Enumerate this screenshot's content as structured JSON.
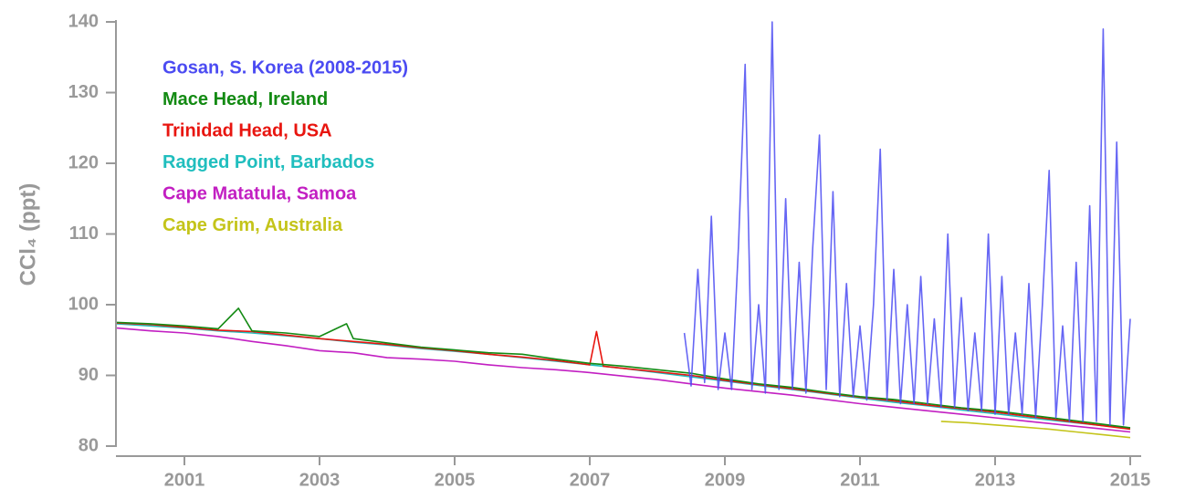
{
  "chart_data": {
    "type": "line",
    "y_label": "CCl₄ (ppt)",
    "xlim": [
      2000,
      2015
    ],
    "ylim": [
      80,
      140
    ],
    "xticks": [
      2001,
      2003,
      2005,
      2007,
      2009,
      2011,
      2013,
      2015
    ],
    "yticks": [
      80,
      90,
      100,
      110,
      120,
      130,
      140
    ],
    "series": [
      {
        "name": "Gosan, S. Korea (2008-2015)",
        "color": "#4b4bf2",
        "x": [
          2008.4,
          2008.5,
          2008.6,
          2008.7,
          2008.8,
          2008.9,
          2009.0,
          2009.1,
          2009.2,
          2009.3,
          2009.4,
          2009.5,
          2009.6,
          2009.7,
          2009.8,
          2009.9,
          2010.0,
          2010.1,
          2010.2,
          2010.3,
          2010.4,
          2010.5,
          2010.6,
          2010.7,
          2010.8,
          2010.9,
          2011.0,
          2011.1,
          2011.2,
          2011.3,
          2011.4,
          2011.5,
          2011.6,
          2011.7,
          2011.8,
          2011.9,
          2012.0,
          2012.1,
          2012.2,
          2012.3,
          2012.4,
          2012.5,
          2012.6,
          2012.7,
          2012.8,
          2012.9,
          2013.0,
          2013.1,
          2013.2,
          2013.3,
          2013.4,
          2013.5,
          2013.6,
          2013.7,
          2013.8,
          2013.9,
          2014.0,
          2014.1,
          2014.2,
          2014.3,
          2014.4,
          2014.5,
          2014.6,
          2014.7,
          2014.8,
          2014.9,
          2015.0
        ],
        "values": [
          96,
          88.5,
          105,
          89,
          112.5,
          88,
          96,
          88,
          108,
          134,
          88,
          100,
          87.5,
          140,
          88,
          115,
          88,
          106,
          87.5,
          108,
          124,
          88,
          116,
          87,
          103,
          87,
          97,
          86.5,
          100,
          122,
          86.5,
          105,
          86,
          100,
          86,
          104,
          86,
          98,
          85.5,
          110,
          85.5,
          101,
          85,
          96,
          85,
          110,
          84.5,
          104,
          84.5,
          96,
          84.5,
          103,
          84,
          100,
          119,
          84,
          97,
          83.5,
          106,
          83.5,
          114,
          83.5,
          139,
          83,
          123,
          83,
          98
        ]
      },
      {
        "name": "Mace Head, Ireland",
        "color": "#138a13",
        "x": [
          2000,
          2000.5,
          2001,
          2001.5,
          2001.8,
          2002,
          2002.5,
          2003,
          2003.4,
          2003.5,
          2004,
          2004.5,
          2005,
          2005.5,
          2006,
          2006.5,
          2007,
          2007.5,
          2008,
          2008.5,
          2009,
          2009.5,
          2010,
          2010.5,
          2011,
          2011.5,
          2012,
          2012.5,
          2013,
          2013.5,
          2014,
          2014.5,
          2015
        ],
        "values": [
          97.5,
          97.3,
          97,
          96.6,
          99.5,
          96.3,
          96,
          95.5,
          97.3,
          95.2,
          94.6,
          94,
          93.6,
          93.2,
          93,
          92.3,
          91.7,
          91.3,
          90.8,
          90.3,
          89.5,
          88.8,
          88.3,
          87.6,
          87,
          86.6,
          86,
          85.4,
          85,
          84.4,
          83.8,
          83.2,
          82.6
        ]
      },
      {
        "name": "Trinidad Head, USA",
        "color": "#e8150f",
        "x": [
          2000,
          2000.5,
          2001,
          2001.5,
          2002,
          2002.5,
          2003,
          2003.5,
          2004,
          2004.5,
          2005,
          2005.5,
          2006,
          2006.5,
          2007,
          2007.1,
          2007.2,
          2007.5,
          2008,
          2008.5,
          2009,
          2009.5,
          2010,
          2010.5,
          2011,
          2011.5,
          2012,
          2012.5,
          2013,
          2013.5,
          2014,
          2014.5,
          2015
        ],
        "values": [
          97.4,
          97.2,
          96.8,
          96.4,
          96.2,
          95.7,
          95.2,
          94.8,
          94.4,
          93.9,
          93.5,
          93,
          92.6,
          92.1,
          91.5,
          96.2,
          91.3,
          91,
          90.5,
          90,
          89.3,
          88.7,
          88.1,
          87.5,
          86.9,
          86.4,
          85.8,
          85.3,
          84.8,
          84.2,
          83.6,
          83,
          82.4
        ]
      },
      {
        "name": "Ragged Point, Barbados",
        "color": "#20bebe",
        "x": [
          2000,
          2000.5,
          2001,
          2001.5,
          2002,
          2002.5,
          2003,
          2003.5,
          2004,
          2004.5,
          2005,
          2005.5,
          2006,
          2006.5,
          2007,
          2007.5,
          2008,
          2008.5,
          2009,
          2009.5,
          2010,
          2010.5,
          2011,
          2011.5,
          2012,
          2012.5,
          2013,
          2013.5,
          2014,
          2014.5,
          2015
        ],
        "values": [
          97.3,
          97,
          96.7,
          96.3,
          96,
          95.6,
          95.2,
          94.7,
          94.3,
          93.8,
          93.4,
          93,
          92.5,
          92,
          91.5,
          91,
          90.4,
          89.8,
          89.2,
          88.6,
          88,
          87.4,
          86.8,
          86.2,
          85.7,
          85.1,
          84.6,
          84,
          83.5,
          83,
          82.5
        ]
      },
      {
        "name": "Cape Matatula, Samoa",
        "color": "#c21fc2",
        "x": [
          2000,
          2000.5,
          2001,
          2001.5,
          2002,
          2002.5,
          2003,
          2003.5,
          2004,
          2004.5,
          2005,
          2005.5,
          2006,
          2006.5,
          2007,
          2007.5,
          2008,
          2008.5,
          2009,
          2009.5,
          2010,
          2010.5,
          2011,
          2011.5,
          2012,
          2012.5,
          2013,
          2013.5,
          2014,
          2014.5,
          2015
        ],
        "values": [
          96.7,
          96.3,
          96,
          95.5,
          94.8,
          94.2,
          93.5,
          93.2,
          92.5,
          92.3,
          92,
          91.5,
          91.1,
          90.8,
          90.4,
          89.9,
          89.4,
          88.8,
          88.2,
          87.7,
          87.2,
          86.6,
          86,
          85.5,
          85,
          84.5,
          84,
          83.5,
          83,
          82.5,
          82
        ]
      },
      {
        "name": "Cape Grim, Australia",
        "color": "#c4c41a",
        "x": [
          2012.2,
          2012.6,
          2013.0,
          2013.4,
          2013.8,
          2014.2,
          2014.6,
          2015.0
        ],
        "values": [
          83.5,
          83.3,
          83,
          82.7,
          82.4,
          82,
          81.6,
          81.2
        ]
      }
    ]
  }
}
